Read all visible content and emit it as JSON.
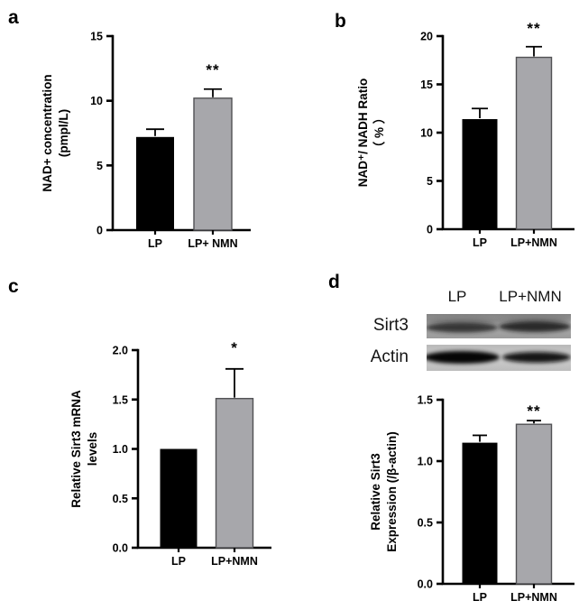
{
  "figure_bg": "#ffffff",
  "colors": {
    "bar_black": "#000000",
    "bar_gray": "#a7a7ab",
    "bar_gray_stroke": "#515154",
    "axis": "#000000"
  },
  "panels": {
    "a": {
      "label": "a"
    },
    "b": {
      "label": "b"
    },
    "c": {
      "label": "c"
    },
    "d": {
      "label": "d",
      "blot": {
        "col_headers": [
          "LP",
          "LP+NMN"
        ],
        "row_labels": [
          "Sirt3",
          "Actin"
        ]
      }
    }
  },
  "chart_data": [
    {
      "panel": "a",
      "type": "bar",
      "title": "",
      "categories": [
        "LP",
        "LP+ NMN"
      ],
      "values": [
        7.2,
        10.2
      ],
      "errors_sd": [
        0.6,
        0.7
      ],
      "significance": {
        "label": "**",
        "category": "LP+ NMN"
      },
      "ylabel_lines": [
        "NAD+ concentration",
        "(pmpl/L)"
      ],
      "ylim": [
        0,
        15
      ],
      "yticks": [
        {
          "v": 0,
          "label": "0"
        },
        {
          "v": 5,
          "label": "5"
        },
        {
          "v": 10,
          "label": "10"
        },
        {
          "v": 15,
          "label": "15"
        }
      ],
      "bar_fills": [
        "#000000",
        "#a7a7ab"
      ],
      "grid": false,
      "legend": null
    },
    {
      "panel": "b",
      "type": "bar",
      "title": "",
      "categories": [
        "LP",
        "LP+NMN"
      ],
      "values": [
        11.4,
        17.8
      ],
      "errors_sd": [
        1.1,
        1.1
      ],
      "significance": {
        "label": "**",
        "category": "LP+NMN"
      },
      "ylabel_lines": [
        "NAD⁺/ NADH Ratio",
        "（ % ）"
      ],
      "ylim": [
        0,
        20
      ],
      "yticks": [
        {
          "v": 0,
          "label": "0"
        },
        {
          "v": 5,
          "label": "5"
        },
        {
          "v": 10,
          "label": "10"
        },
        {
          "v": 15,
          "label": "15"
        },
        {
          "v": 20,
          "label": "20"
        }
      ],
      "bar_fills": [
        "#000000",
        "#a7a7ab"
      ],
      "grid": false,
      "legend": null
    },
    {
      "panel": "c",
      "type": "bar",
      "title": "",
      "categories": [
        "LP",
        "LP+NMN"
      ],
      "values": [
        1.0,
        1.51
      ],
      "errors_sd": [
        0,
        0.3
      ],
      "significance": {
        "label": "*",
        "category": "LP+NMN"
      },
      "ylabel_lines": [
        "Relative Sirt3 mRNA",
        "levels"
      ],
      "ylim": [
        0,
        2.0
      ],
      "yticks": [
        {
          "v": 0,
          "label": "0.0"
        },
        {
          "v": 0.5,
          "label": "0.5"
        },
        {
          "v": 1.0,
          "label": "1.0"
        },
        {
          "v": 1.5,
          "label": "1.5"
        },
        {
          "v": 2.0,
          "label": "2.0"
        }
      ],
      "bar_fills": [
        "#000000",
        "#a7a7ab"
      ],
      "grid": false,
      "legend": null
    },
    {
      "panel": "d",
      "type": "bar",
      "title": "",
      "categories": [
        "LP",
        "LP+NMN"
      ],
      "values": [
        1.15,
        1.3
      ],
      "errors_sd": [
        0.06,
        0.03
      ],
      "significance": {
        "label": "**",
        "category": "LP+NMN"
      },
      "ylabel_lines": [
        "Relative Sirt3",
        "Expression (/β-actin)"
      ],
      "ylim": [
        0,
        1.5
      ],
      "yticks": [
        {
          "v": 0,
          "label": "0.0"
        },
        {
          "v": 0.5,
          "label": "0.5"
        },
        {
          "v": 1.0,
          "label": "1.0"
        },
        {
          "v": 1.5,
          "label": "1.5"
        }
      ],
      "bar_fills": [
        "#000000",
        "#a7a7ab"
      ],
      "grid": false,
      "legend": null
    }
  ]
}
